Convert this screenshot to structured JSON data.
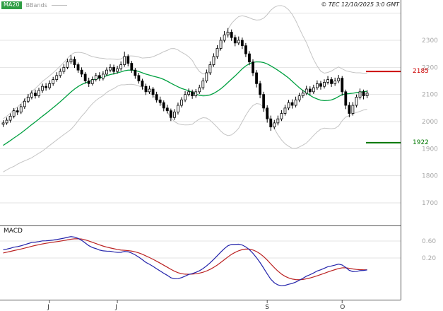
{
  "header": {
    "legend_ma": "MA20",
    "legend_bbands": "BBands",
    "copyright": "© TEC 12/10/2025 3:0 GMT"
  },
  "colors": {
    "ma_line": "#00a040",
    "bband_line": "#c4c4c4",
    "candle": "#000000",
    "grid": "#e3e3e3",
    "resistance": "#cc0000",
    "support": "#007700",
    "macd_line": "#2222aa",
    "macd_signal": "#bb2222",
    "axis_text": "#a8a8a8",
    "month_text": "#333333",
    "border": "#555555"
  },
  "price_panel": {
    "y_ticks": [
      {
        "label": "2300",
        "value": 2300
      },
      {
        "label": "2200",
        "value": 2200
      },
      {
        "label": "2100",
        "value": 2100
      },
      {
        "label": "2000",
        "value": 2000
      },
      {
        "label": "1900",
        "value": 1900
      },
      {
        "label": "1800",
        "value": 1800
      },
      {
        "label": "1700",
        "value": 1700
      }
    ],
    "y_grid_extra": [
      2400
    ],
    "levels": [
      {
        "name": "resistance",
        "label": "2185",
        "value": 2185
      },
      {
        "name": "support",
        "label": "1922",
        "value": 1922
      }
    ]
  },
  "macd_panel": {
    "label": "MACD",
    "y_ticks": [
      {
        "label": "0.60",
        "value": 0.6
      },
      {
        "label": "0.20",
        "value": 0.2
      }
    ]
  },
  "x_axis": {
    "months": [
      {
        "label": "J",
        "index": 13
      },
      {
        "label": "J",
        "index": 32
      },
      {
        "label": "S",
        "index": 74
      },
      {
        "label": "O",
        "index": 95
      }
    ]
  },
  "chart_data": {
    "type": "candlestick",
    "title": "",
    "ylim": [
      1620,
      2450
    ],
    "macd_ylim": [
      -0.78,
      0.95
    ],
    "indicators": {
      "ma_period": 20,
      "bb_period": 20,
      "bb_stddev": 2,
      "macd_fast": 12,
      "macd_slow": 26,
      "macd_signal": 9
    },
    "prehistory_closes": [
      1820,
      1832,
      1841,
      1850,
      1858,
      1866,
      1874,
      1882,
      1890,
      1899,
      1907,
      1915,
      1923,
      1931,
      1940,
      1949,
      1958,
      1968,
      1978,
      1988
    ],
    "candles": [
      [
        1990,
        2005,
        1980,
        1995
      ],
      [
        1995,
        2015,
        1988,
        2005
      ],
      [
        2005,
        2030,
        1996,
        2020
      ],
      [
        2020,
        2050,
        2012,
        2040
      ],
      [
        2040,
        2052,
        2024,
        2035
      ],
      [
        2035,
        2065,
        2028,
        2055
      ],
      [
        2055,
        2085,
        2047,
        2075
      ],
      [
        2075,
        2102,
        2068,
        2090
      ],
      [
        2090,
        2115,
        2082,
        2105
      ],
      [
        2105,
        2118,
        2085,
        2095
      ],
      [
        2095,
        2125,
        2088,
        2115
      ],
      [
        2115,
        2140,
        2106,
        2130
      ],
      [
        2130,
        2142,
        2114,
        2125
      ],
      [
        2125,
        2152,
        2118,
        2140
      ],
      [
        2140,
        2165,
        2132,
        2155
      ],
      [
        2155,
        2182,
        2147,
        2170
      ],
      [
        2170,
        2196,
        2162,
        2185
      ],
      [
        2185,
        2212,
        2176,
        2200
      ],
      [
        2200,
        2232,
        2193,
        2220
      ],
      [
        2220,
        2245,
        2212,
        2230
      ],
      [
        2230,
        2240,
        2198,
        2210
      ],
      [
        2210,
        2218,
        2180,
        2190
      ],
      [
        2190,
        2200,
        2164,
        2175
      ],
      [
        2175,
        2183,
        2140,
        2150
      ],
      [
        2150,
        2162,
        2128,
        2140
      ],
      [
        2140,
        2166,
        2133,
        2155
      ],
      [
        2155,
        2180,
        2148,
        2170
      ],
      [
        2170,
        2182,
        2150,
        2160
      ],
      [
        2160,
        2186,
        2152,
        2175
      ],
      [
        2175,
        2200,
        2168,
        2190
      ],
      [
        2190,
        2212,
        2182,
        2200
      ],
      [
        2200,
        2210,
        2174,
        2185
      ],
      [
        2185,
        2206,
        2177,
        2195
      ],
      [
        2195,
        2222,
        2188,
        2210
      ],
      [
        2210,
        2258,
        2202,
        2240
      ],
      [
        2240,
        2248,
        2204,
        2215
      ],
      [
        2215,
        2224,
        2180,
        2190
      ],
      [
        2190,
        2198,
        2158,
        2170
      ],
      [
        2170,
        2180,
        2140,
        2150
      ],
      [
        2150,
        2158,
        2118,
        2130
      ],
      [
        2130,
        2140,
        2098,
        2110
      ],
      [
        2110,
        2132,
        2102,
        2120
      ],
      [
        2120,
        2128,
        2088,
        2100
      ],
      [
        2100,
        2110,
        2070,
        2080
      ],
      [
        2080,
        2092,
        2058,
        2070
      ],
      [
        2070,
        2078,
        2038,
        2050
      ],
      [
        2050,
        2062,
        2030,
        2040
      ],
      [
        2040,
        2048,
        2002,
        2015
      ],
      [
        2015,
        2046,
        2006,
        2035
      ],
      [
        2035,
        2070,
        2026,
        2060
      ],
      [
        2060,
        2090,
        2052,
        2080
      ],
      [
        2080,
        2112,
        2072,
        2100
      ],
      [
        2100,
        2122,
        2093,
        2110
      ],
      [
        2110,
        2118,
        2084,
        2095
      ],
      [
        2095,
        2120,
        2088,
        2110
      ],
      [
        2110,
        2136,
        2102,
        2125
      ],
      [
        2125,
        2162,
        2118,
        2150
      ],
      [
        2150,
        2192,
        2143,
        2180
      ],
      [
        2180,
        2222,
        2172,
        2210
      ],
      [
        2210,
        2252,
        2202,
        2240
      ],
      [
        2240,
        2282,
        2232,
        2270
      ],
      [
        2270,
        2312,
        2262,
        2300
      ],
      [
        2300,
        2334,
        2292,
        2320
      ],
      [
        2320,
        2345,
        2310,
        2330
      ],
      [
        2330,
        2340,
        2298,
        2310
      ],
      [
        2310,
        2320,
        2278,
        2290
      ],
      [
        2290,
        2314,
        2282,
        2300
      ],
      [
        2300,
        2310,
        2268,
        2280
      ],
      [
        2280,
        2290,
        2238,
        2250
      ],
      [
        2250,
        2260,
        2208,
        2220
      ],
      [
        2220,
        2230,
        2168,
        2180
      ],
      [
        2180,
        2190,
        2126,
        2140
      ],
      [
        2140,
        2150,
        2086,
        2100
      ],
      [
        2100,
        2110,
        2036,
        2050
      ],
      [
        2050,
        2060,
        1996,
        2010
      ],
      [
        2010,
        2022,
        1966,
        1980
      ],
      [
        1980,
        2006,
        1972,
        1995
      ],
      [
        1995,
        2022,
        1986,
        2010
      ],
      [
        2010,
        2042,
        2002,
        2030
      ],
      [
        2030,
        2062,
        2022,
        2050
      ],
      [
        2050,
        2080,
        2042,
        2070
      ],
      [
        2070,
        2082,
        2048,
        2060
      ],
      [
        2060,
        2092,
        2052,
        2080
      ],
      [
        2080,
        2106,
        2072,
        2095
      ],
      [
        2095,
        2116,
        2087,
        2105
      ],
      [
        2105,
        2132,
        2098,
        2120
      ],
      [
        2120,
        2130,
        2098,
        2110
      ],
      [
        2110,
        2136,
        2102,
        2125
      ],
      [
        2125,
        2152,
        2117,
        2140
      ],
      [
        2140,
        2150,
        2118,
        2130
      ],
      [
        2130,
        2156,
        2122,
        2145
      ],
      [
        2145,
        2168,
        2137,
        2155
      ],
      [
        2155,
        2164,
        2128,
        2140
      ],
      [
        2140,
        2162,
        2132,
        2150
      ],
      [
        2150,
        2172,
        2142,
        2160
      ],
      [
        2160,
        2168,
        2096,
        2110
      ],
      [
        2110,
        2118,
        2046,
        2060
      ],
      [
        2060,
        2072,
        2016,
        2030
      ],
      [
        2030,
        2072,
        2022,
        2060
      ],
      [
        2060,
        2100,
        2052,
        2090
      ],
      [
        2090,
        2122,
        2082,
        2110
      ],
      [
        2110,
        2118,
        2082,
        2095
      ],
      [
        2095,
        2116,
        2086,
        2105
      ]
    ]
  }
}
